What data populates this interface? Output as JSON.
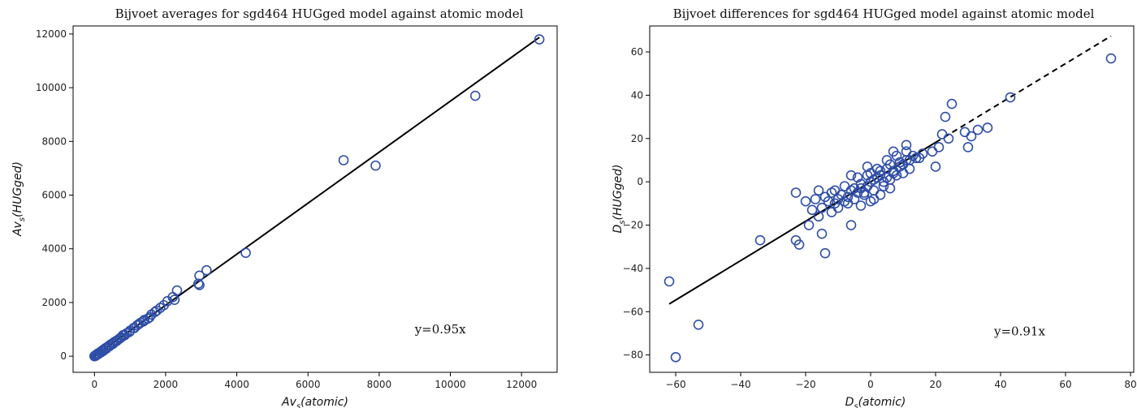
{
  "chart_data": [
    {
      "type": "scatter",
      "title": "Bijvoet averages for sgd464 HUGged model against atomic model",
      "xlabel": {
        "main": "Av",
        "sub": "s",
        "rest": "(atomic)"
      },
      "ylabel": {
        "main": "Av",
        "sub": "s",
        "rest": "(HUGged)"
      },
      "xlim": [
        -600,
        13000
      ],
      "ylim": [
        -600,
        12300
      ],
      "xticks": [
        0,
        2000,
        4000,
        6000,
        8000,
        10000,
        12000
      ],
      "yticks": [
        0,
        2000,
        4000,
        6000,
        8000,
        10000,
        12000
      ],
      "annotation": {
        "text": "y=0.95x",
        "x": 9000,
        "y": 850
      },
      "fit": {
        "slope": 0.95,
        "x_range": [
          0,
          12500
        ],
        "style": "solid"
      },
      "series": [
        {
          "marker": "open-circle",
          "color": "#2f4ea8",
          "x": [
            12500,
            10700,
            7900,
            7000,
            4250,
            3150,
            2950,
            2920,
            2950,
            2320,
            2250,
            2200,
            2050,
            1850,
            1700,
            1600,
            1500,
            1400,
            1300,
            1200,
            1100,
            1000,
            900,
            850,
            800,
            750,
            700,
            650,
            600,
            550,
            500,
            450,
            400,
            350,
            300,
            250,
            200,
            150,
            100,
            80,
            60,
            40,
            20,
            0,
            30,
            70,
            120,
            180,
            250,
            330,
            420,
            520,
            620,
            730,
            850,
            980,
            1120,
            1250,
            1380,
            1550,
            1750,
            1950
          ],
          "y": [
            11800,
            9700,
            7100,
            7300,
            3850,
            3200,
            3000,
            2700,
            2650,
            2450,
            2100,
            2200,
            2050,
            1800,
            1650,
            1550,
            1400,
            1350,
            1250,
            1150,
            1050,
            950,
            850,
            800,
            780,
            700,
            650,
            600,
            560,
            520,
            470,
            430,
            380,
            330,
            290,
            240,
            190,
            140,
            100,
            80,
            60,
            40,
            20,
            0,
            10,
            50,
            90,
            140,
            200,
            280,
            370,
            460,
            560,
            680,
            780,
            900,
            1050,
            1200,
            1300,
            1450,
            1700,
            1900
          ]
        }
      ]
    },
    {
      "type": "scatter",
      "title": "Bijvoet differences for sgd464 HUGged model against atomic model",
      "xlabel": {
        "main": "D",
        "sub": "s",
        "rest": "(atomic)"
      },
      "ylabel": {
        "main": "D",
        "sub": "s",
        "rest": "(HUGged)"
      },
      "xlim": [
        -68,
        81
      ],
      "ylim": [
        -88,
        72
      ],
      "xticks": [
        -60,
        -40,
        -20,
        0,
        20,
        40,
        60,
        80
      ],
      "yticks": [
        -80,
        -60,
        -40,
        -20,
        0,
        20,
        40,
        60
      ],
      "annotation": {
        "text": "y=0.91x",
        "x": 38,
        "y": -71
      },
      "fit": {
        "slope": 0.91,
        "x_range": [
          -62,
          74
        ],
        "solid_until": 20,
        "style": "solid-then-dashed"
      },
      "series": [
        {
          "marker": "open-circle",
          "color": "#2f4ea8",
          "x": [
            -62,
            -60,
            -53,
            -34,
            -23,
            -23,
            -22,
            -19,
            -16,
            -15,
            -14,
            -12,
            -10,
            -8,
            -6,
            -5,
            -4,
            -3,
            -2,
            -1,
            0,
            1,
            2,
            3,
            4,
            5,
            6,
            7,
            8,
            9,
            10,
            11,
            12,
            13,
            14,
            16,
            19,
            20,
            21,
            22,
            23,
            24,
            25,
            29,
            30,
            31,
            33,
            36,
            43,
            74,
            -17,
            -15,
            -13,
            -11,
            -9,
            -7,
            -5,
            -3,
            -1,
            1,
            3,
            5,
            7,
            9,
            11,
            -18,
            -12,
            -6,
            0,
            6,
            12,
            -10,
            -4,
            2,
            8,
            -14,
            4,
            10,
            -2,
            15,
            -8,
            0,
            3,
            -6,
            6,
            9,
            -20,
            -16,
            -11,
            -7,
            -1,
            5,
            11,
            1,
            -3,
            7
          ],
          "y": [
            -46,
            -81,
            -66,
            -27,
            -5,
            -27,
            -29,
            -20,
            -16,
            -24,
            -33,
            -14,
            -12,
            -9,
            -20,
            -8,
            -5,
            -3,
            -5,
            3,
            0,
            -4,
            2,
            5,
            -2,
            6,
            8,
            4,
            3,
            9,
            8,
            14,
            10,
            12,
            11,
            13,
            14,
            7,
            16,
            22,
            30,
            20,
            36,
            23,
            16,
            21,
            24,
            25,
            39,
            57,
            -8,
            -12,
            -9,
            -10,
            -6,
            -7,
            -3,
            -1,
            -2,
            1,
            3,
            2,
            5,
            7,
            10,
            -13,
            -5,
            -4,
            4,
            1,
            6,
            -8,
            2,
            6,
            12,
            -7,
            0,
            4,
            -6,
            11,
            -2,
            -9,
            -6,
            3,
            -3,
            9,
            -9,
            -4,
            -4,
            -10,
            7,
            10,
            17,
            -8,
            -11,
            14
          ]
        }
      ]
    }
  ]
}
